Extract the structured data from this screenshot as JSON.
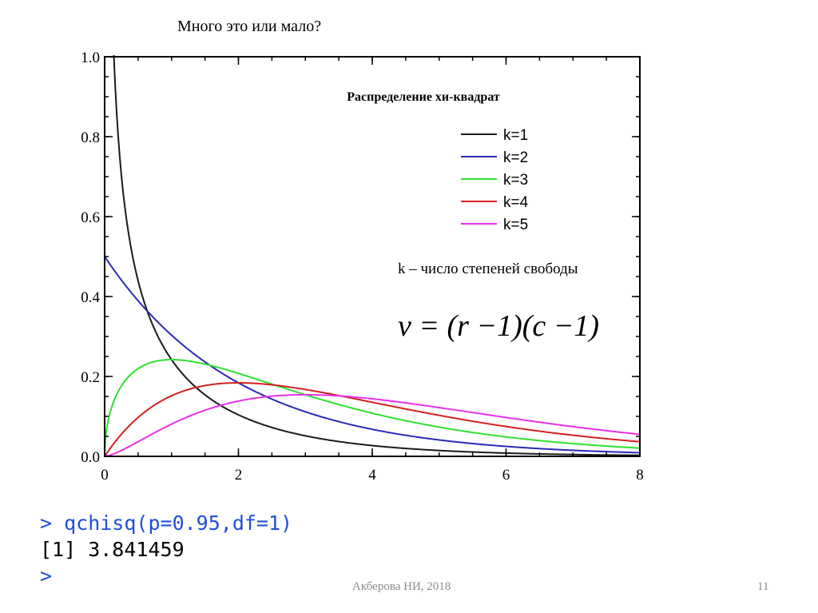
{
  "slide": {
    "title": "Много это или мало?",
    "footer_text": "Акберова НИ, 2018",
    "page_number": "11"
  },
  "chart_data": {
    "type": "line",
    "title": "Распределение хи-квадрат",
    "xlim": [
      0,
      8
    ],
    "ylim": [
      0,
      1
    ],
    "x_ticks": [
      "0",
      "2",
      "4",
      "6",
      "8"
    ],
    "y_ticks": [
      "0.0",
      "0.2",
      "0.4",
      "0.6",
      "0.8",
      "1.0"
    ],
    "legend_position": "top-right",
    "series": [
      {
        "name": "k=1",
        "df": 1,
        "color": "#1a1a1a"
      },
      {
        "name": "k=2",
        "df": 2,
        "color": "#2a2ab8"
      },
      {
        "name": "k=3",
        "df": 3,
        "color": "#2ee02e"
      },
      {
        "name": "k=4",
        "df": 4,
        "color": "#d42020"
      },
      {
        "name": "k=5",
        "df": 5,
        "color": "#e830e8"
      }
    ],
    "annotation": "k – число степеней свободы",
    "formula": "ν = (r −1)(c −1)"
  },
  "console": {
    "command": "> qchisq(p=0.95,df=1)",
    "result": "[1] 3.841459",
    "prompt": ">"
  }
}
